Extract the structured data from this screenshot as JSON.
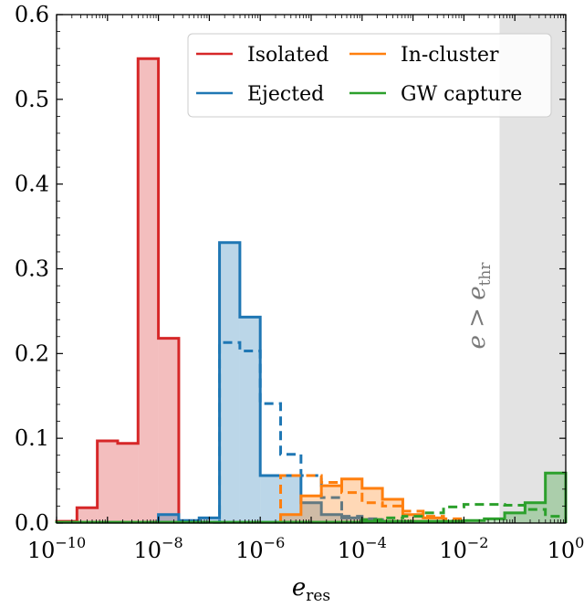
{
  "chart_data": {
    "type": "histogram",
    "xscale": "log",
    "xlim_exp": [
      -10,
      0
    ],
    "ylim": [
      0,
      0.6
    ],
    "x_tick_labels": [
      {
        "base": "10",
        "exp": "−10"
      },
      {
        "base": "10",
        "exp": "−8"
      },
      {
        "base": "10",
        "exp": "−6"
      },
      {
        "base": "10",
        "exp": "−4"
      },
      {
        "base": "10",
        "exp": "−2"
      },
      {
        "base": "10",
        "exp": "0"
      }
    ],
    "y_tick_labels": [
      "0.0",
      "0.1",
      "0.2",
      "0.3",
      "0.4",
      "0.5",
      "0.6"
    ],
    "xlabel": {
      "main": "e",
      "sub": "res"
    },
    "shaded_region": {
      "from_exp": -1.3,
      "to_exp": 0,
      "label_main": "e > e",
      "label_sub": "thr",
      "color": "#e3e3e3"
    },
    "legend_position": "top-right",
    "series": [
      {
        "name": "Isolated",
        "color": "#d62728",
        "style": "solid",
        "filled": true,
        "edges_exp": [
          -10,
          -9.6,
          -9.2,
          -8.8,
          -8.4,
          -8.0,
          -7.6,
          -7.2
        ],
        "values": [
          0.002,
          0.018,
          0.097,
          0.094,
          0.548,
          0.218,
          0.002
        ]
      },
      {
        "name": "Ejected",
        "color": "#1f77b4",
        "style": "solid",
        "filled": true,
        "edges_exp": [
          -8.0,
          -7.6,
          -7.2,
          -6.8,
          -6.4,
          -6.0,
          -5.6,
          -5.2,
          -4.8,
          -4.4,
          -4.0,
          -3.6,
          -3.2
        ],
        "values": [
          0.01,
          0.003,
          0.006,
          0.331,
          0.243,
          0.056,
          0.056,
          0.024,
          0.01,
          0.006,
          0.004,
          0.002
        ]
      },
      {
        "name": "Ejected (dashed)",
        "color": "#1f77b4",
        "style": "dashed",
        "filled": false,
        "edges_exp": [
          -7.2,
          -6.8,
          -6.4,
          -6.0,
          -5.6,
          -5.2,
          -4.8,
          -4.4,
          -4.0,
          -3.6,
          -3.2
        ],
        "values": [
          0.001,
          0.213,
          0.203,
          0.141,
          0.081,
          0.056,
          0.03,
          0.008,
          0.005,
          0.002
        ]
      },
      {
        "name": "In-cluster",
        "color": "#ff7f0e",
        "style": "solid",
        "filled": true,
        "edges_exp": [
          -5.6,
          -5.2,
          -4.8,
          -4.4,
          -4.0,
          -3.6,
          -3.2,
          -2.8,
          -2.4,
          -2.0
        ],
        "values": [
          0.01,
          0.032,
          0.044,
          0.052,
          0.041,
          0.028,
          0.01,
          0.006,
          0.002
        ]
      },
      {
        "name": "In-cluster (dashed)",
        "color": "#ff7f0e",
        "style": "dashed",
        "filled": false,
        "edges_exp": [
          -5.6,
          -5.2,
          -4.8,
          -4.4,
          -4.0,
          -3.6,
          -3.2,
          -2.8,
          -2.4,
          -2.0
        ],
        "values": [
          0.056,
          0.056,
          0.048,
          0.036,
          0.024,
          0.02,
          0.014,
          0.008,
          0.005
        ]
      },
      {
        "name": "GW capture",
        "color": "#2ca02c",
        "style": "solid",
        "filled": true,
        "edges_exp": [
          -10,
          -9.6,
          -9.2,
          -8.8,
          -8.4,
          -8.0,
          -7.6,
          -7.2,
          -6.8,
          -6.4,
          -6.0,
          -5.6,
          -5.2,
          -4.8,
          -4.4,
          -4.0,
          -3.6,
          -3.2,
          -2.8,
          -2.4,
          -2.0,
          -1.6,
          -1.2,
          -0.8,
          -0.4,
          0
        ],
        "values": [
          0.001,
          0.001,
          0.001,
          0.001,
          0.001,
          0.001,
          0.001,
          0.001,
          0.001,
          0.001,
          0.001,
          0.001,
          0.001,
          0.001,
          0.001,
          0.002,
          0.002,
          0.002,
          0.002,
          0.002,
          0.003,
          0.005,
          0.012,
          0.024,
          0.059
        ]
      },
      {
        "name": "GW capture (dashed)",
        "color": "#2ca02c",
        "style": "dashed",
        "filled": false,
        "edges_exp": [
          -4.0,
          -3.6,
          -3.2,
          -2.8,
          -2.4,
          -2.0,
          -1.6,
          -1.2,
          -0.8,
          -0.4,
          0
        ],
        "values": [
          0.004,
          0.006,
          0.008,
          0.012,
          0.019,
          0.022,
          0.022,
          0.021,
          0.016,
          0.008
        ]
      }
    ]
  }
}
